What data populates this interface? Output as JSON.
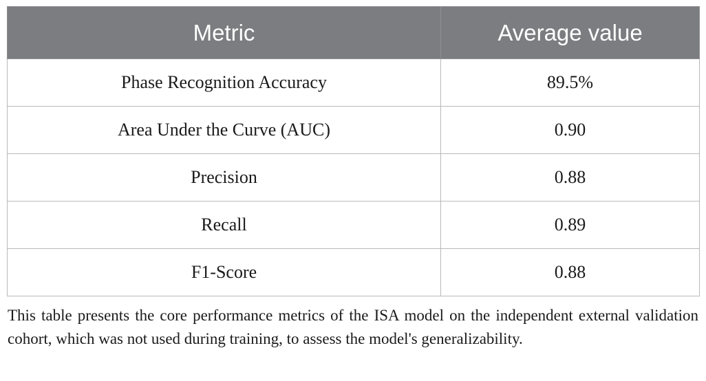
{
  "table": {
    "headers": [
      "Metric",
      "Average value"
    ],
    "rows": [
      [
        "Phase Recognition Accuracy",
        "89.5%"
      ],
      [
        "Area Under the Curve (AUC)",
        "0.90"
      ],
      [
        "Precision",
        "0.88"
      ],
      [
        "Recall",
        "0.89"
      ],
      [
        "F1-Score",
        "0.88"
      ]
    ],
    "header_bg_color": "#7b7d80"
  },
  "caption": "This table presents the core performance metrics of the ISA model on the independent external validation cohort, which was not used during training, to assess the model's generalizability."
}
